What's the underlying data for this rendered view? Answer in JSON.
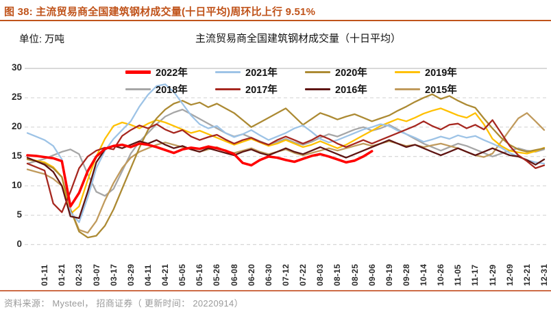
{
  "header": {
    "figure_title": "图 38: 主流贸易商全国建筑钢材成交量(十日平均)周环比上行 9.51%",
    "accent_color": "#C0531A"
  },
  "footer": {
    "source_text": "资料来源： Mysteel， 招商证券（ 更新时间： 20220914）",
    "rule_color": "#CC6A44",
    "text_color": "#9A9A9A"
  },
  "chart_data": {
    "type": "line",
    "title": "主流贸易商全国建筑钢材成交量（十日平均）",
    "unit_label": "单位: 万吨",
    "ylabel": "万吨",
    "ylim": [
      0,
      30
    ],
    "y_ticks": [
      30,
      25,
      20,
      15,
      10,
      5,
      0
    ],
    "grid": "horizontal-dashed",
    "gridline_color": "#D6D6D6",
    "legend_position": "top-inside-two-rows",
    "x_tick_labels": [
      "01-11",
      "01-21",
      "02-23",
      "03-07",
      "03-17",
      "03-29",
      "04-11",
      "04-21",
      "05-05",
      "05-16",
      "05-26",
      "06-08",
      "06-20",
      "06-30",
      "07-12",
      "07-22",
      "08-03",
      "08-15",
      "08-25",
      "09-06",
      "09-19",
      "09-28",
      "10-14",
      "10-26",
      "11-05",
      "11-17",
      "11-29",
      "12-09",
      "12-21",
      "12-31"
    ],
    "points_per_tick_note": "values are sampled at half-tick spacing; index 2+2j corresponds to x_tick_labels[j]",
    "draw_order": [
      4,
      7,
      3,
      2,
      1,
      6,
      5,
      0
    ],
    "series": [
      {
        "name": "2022年",
        "color": "#FF0000",
        "width": 3.6,
        "values": [
          15.2,
          15.1,
          14.9,
          14.7,
          14.2,
          6.5,
          8.8,
          12.5,
          15.0,
          16.3,
          16.8,
          17.0,
          16.6,
          17.2,
          17.0,
          16.6,
          16.1,
          15.6,
          16.2,
          16.5,
          16.3,
          16.7,
          16.4,
          16.0,
          15.4,
          13.9,
          13.5,
          14.4,
          15.0,
          14.8,
          14.4,
          14.1,
          14.6,
          15.1,
          15.4,
          15.0,
          14.5,
          14.0,
          14.3,
          15.0,
          15.9
        ]
      },
      {
        "name": "2021年",
        "color": "#9DC3E6",
        "width": 2.3,
        "values": [
          19.0,
          18.4,
          17.8,
          16.8,
          14.5,
          5.5,
          3.8,
          8.0,
          13.0,
          16.0,
          18.0,
          19.5,
          21.0,
          23.5,
          25.5,
          27.0,
          27.3,
          26.0,
          24.0,
          22.0,
          20.5,
          19.8,
          20.2,
          19.0,
          18.3,
          18.8,
          19.5,
          18.6,
          17.8,
          18.4,
          19.0,
          19.8,
          20.3,
          19.2,
          18.0,
          17.4,
          17.8,
          18.4,
          19.0,
          19.6,
          20.0,
          20.5,
          20.2,
          19.4,
          18.8,
          18.2,
          17.5,
          17.9,
          18.4,
          18.0,
          18.6,
          18.2,
          18.5,
          17.8,
          17.2,
          16.5,
          15.6,
          15.0,
          14.4,
          14.0,
          13.8
        ]
      },
      {
        "name": "2020年",
        "color": "#AC8A33",
        "width": 2.3,
        "values": [
          14.5,
          14.2,
          13.8,
          13.0,
          11.5,
          6.0,
          2.2,
          1.2,
          1.5,
          3.2,
          6.0,
          9.5,
          13.0,
          16.5,
          19.5,
          21.5,
          23.0,
          24.0,
          24.5,
          23.8,
          24.2,
          23.4,
          24.0,
          23.2,
          22.4,
          21.2,
          20.0,
          20.8,
          21.6,
          22.4,
          23.2,
          21.8,
          20.4,
          21.4,
          22.4,
          21.9,
          21.3,
          21.8,
          22.2,
          21.6,
          21.0,
          21.5,
          22.0,
          22.8,
          23.5,
          24.3,
          25.0,
          25.6,
          24.8,
          25.3,
          24.5,
          23.8,
          23.3,
          21.5,
          19.8,
          18.2,
          17.0,
          16.2,
          15.8,
          16.1,
          16.4
        ]
      },
      {
        "name": "2019年",
        "color": "#FFC000",
        "width": 2.3,
        "values": [
          14.6,
          14.3,
          14.0,
          13.2,
          11.5,
          5.2,
          6.5,
          11.0,
          15.0,
          18.0,
          20.2,
          20.8,
          20.4,
          19.8,
          20.6,
          21.2,
          20.8,
          20.2,
          19.6,
          19.0,
          19.4,
          18.8,
          18.2,
          17.6,
          17.0,
          17.5,
          18.0,
          17.4,
          16.8,
          17.2,
          17.8,
          17.2,
          16.6,
          17.0,
          17.6,
          17.0,
          16.4,
          17.0,
          17.8,
          18.6,
          19.4,
          20.2,
          20.8,
          21.4,
          21.0,
          21.6,
          22.3,
          22.8,
          23.2,
          22.6,
          22.0,
          21.6,
          22.4,
          20.5,
          18.0,
          16.8,
          16.0,
          15.7,
          15.5,
          15.9,
          16.5
        ]
      },
      {
        "name": "2018年",
        "color": "#A6A6A6",
        "width": 2.3,
        "values": [
          13.8,
          14.2,
          14.6,
          15.2,
          15.8,
          16.2,
          15.4,
          12.0,
          9.0,
          8.3,
          9.5,
          12.5,
          15.5,
          17.5,
          19.0,
          20.5,
          21.8,
          22.5,
          23.0,
          22.2,
          21.4,
          20.6,
          19.8,
          19.0,
          18.4,
          18.8,
          18.2,
          17.6,
          17.0,
          17.5,
          18.0,
          17.4,
          17.0,
          17.5,
          18.2,
          18.8,
          18.4,
          19.0,
          19.6,
          20.0,
          19.4,
          19.8,
          20.4,
          19.6,
          18.8,
          18.0,
          17.2,
          16.6,
          16.0,
          16.6,
          17.2,
          16.8,
          16.2,
          15.6,
          15.0,
          15.5,
          16.0,
          16.4,
          16.0,
          15.8,
          16.2
        ]
      },
      {
        "name": "2017年",
        "color": "#A6271F",
        "width": 2.3,
        "values": [
          13.8,
          13.2,
          12.6,
          7.0,
          5.5,
          9.0,
          13.0,
          15.0,
          16.0,
          16.5,
          16.2,
          18.5,
          19.5,
          20.3,
          19.8,
          20.5,
          19.6,
          19.0,
          19.5,
          18.4,
          17.8,
          18.3,
          18.7,
          17.9,
          17.2,
          17.8,
          18.2,
          17.5,
          17.0,
          17.8,
          18.4,
          17.8,
          17.2,
          17.8,
          18.6,
          18.0,
          17.2,
          16.6,
          17.2,
          17.8,
          17.2,
          17.8,
          18.4,
          19.0,
          19.6,
          20.2,
          21.0,
          20.2,
          19.6,
          20.4,
          20.6,
          19.8,
          20.4,
          19.6,
          21.2,
          19.0,
          16.8,
          15.2,
          14.2,
          13.0,
          13.5
        ]
      },
      {
        "name": "2016年",
        "color": "#5E1412",
        "width": 2.3,
        "values": [
          14.8,
          14.2,
          13.6,
          12.4,
          10.0,
          4.8,
          4.5,
          9.0,
          14.0,
          16.2,
          16.8,
          16.4,
          17.0,
          17.6,
          17.2,
          17.8,
          17.0,
          16.4,
          16.8,
          16.2,
          15.8,
          16.4,
          16.0,
          15.6,
          15.2,
          15.8,
          16.2,
          15.6,
          15.2,
          15.8,
          16.4,
          15.8,
          15.4,
          16.0,
          16.6,
          16.0,
          15.4,
          14.8,
          15.4,
          16.0,
          16.6,
          17.2,
          17.8,
          17.2,
          16.6,
          17.0,
          16.4,
          15.8,
          15.2,
          15.8,
          16.4,
          15.8,
          15.2,
          15.8,
          16.4,
          15.8,
          15.2,
          15.0,
          14.4,
          13.6,
          14.5
        ]
      },
      {
        "name": "2015年",
        "color": "#C09A5C",
        "width": 2.3,
        "values": [
          12.8,
          12.4,
          12.0,
          11.2,
          10.0,
          6.0,
          2.5,
          2.0,
          4.0,
          7.5,
          10.5,
          13.0,
          14.8,
          15.8,
          16.4,
          17.0,
          17.4,
          17.0,
          16.6,
          16.2,
          15.8,
          16.2,
          16.6,
          16.0,
          15.6,
          16.0,
          16.4,
          15.8,
          15.4,
          15.8,
          16.2,
          15.6,
          15.2,
          15.6,
          16.0,
          16.4,
          16.0,
          16.4,
          16.8,
          17.2,
          16.8,
          17.2,
          17.6,
          17.2,
          16.8,
          17.0,
          16.6,
          16.9,
          17.2,
          16.8,
          16.4,
          15.8,
          15.2,
          14.9,
          15.5,
          17.5,
          19.5,
          21.5,
          22.4,
          21.0,
          19.5
        ]
      }
    ]
  }
}
